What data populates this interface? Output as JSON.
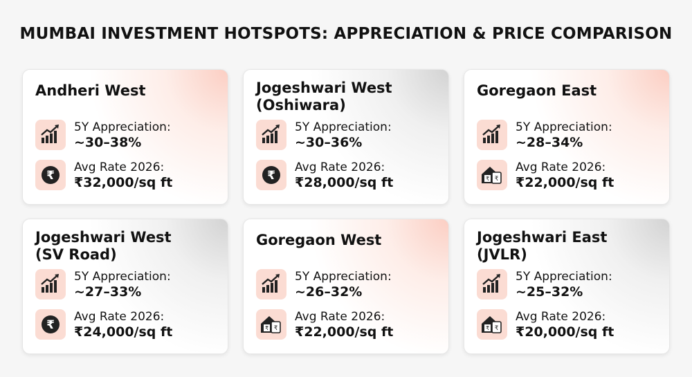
{
  "header": {
    "title": "MUMBAI INVESTMENT HOTSPOTS: APPRECIATION & PRICE COMPARISON"
  },
  "cards": [
    {
      "name": "Andheri West",
      "appreciation_label": "5Y Appreciation:",
      "appreciation": "~30–38%",
      "rate_label": "Avg Rate 2026:",
      "rate": "₹32,000/sq ft"
    },
    {
      "name": "Jogeshwari West (Oshiwara)",
      "appreciation_label": "5Y Appreciation:",
      "appreciation": "~30–36%",
      "rate_label": "Avg Rate 2026:",
      "rate": "₹28,000/sq ft"
    },
    {
      "name": "Goregaon East",
      "appreciation_label": "5Y Appreciation:",
      "appreciation": "~28–34%",
      "rate_label": "Avg Rate 2026:",
      "rate": "₹22,000/sq ft"
    },
    {
      "name": "Jogeshwari West (SV Road)",
      "appreciation_label": "5Y Appreciation:",
      "appreciation": "~27–33%",
      "rate_label": "Avg Rate 2026:",
      "rate": "₹24,000/sq ft"
    },
    {
      "name": "Goregaon West",
      "appreciation_label": "5Y Appreciation:",
      "appreciation": "~26–32%",
      "rate_label": "Avg Rate 2026:",
      "rate": "₹22,000/sq ft"
    },
    {
      "name": "Jogeshwari East (JVLR)",
      "appreciation_label": "5Y Appreciation:",
      "appreciation": "~25–32%",
      "rate_label": "Avg Rate 2026:",
      "rate": "₹20,000/sq ft"
    }
  ]
}
